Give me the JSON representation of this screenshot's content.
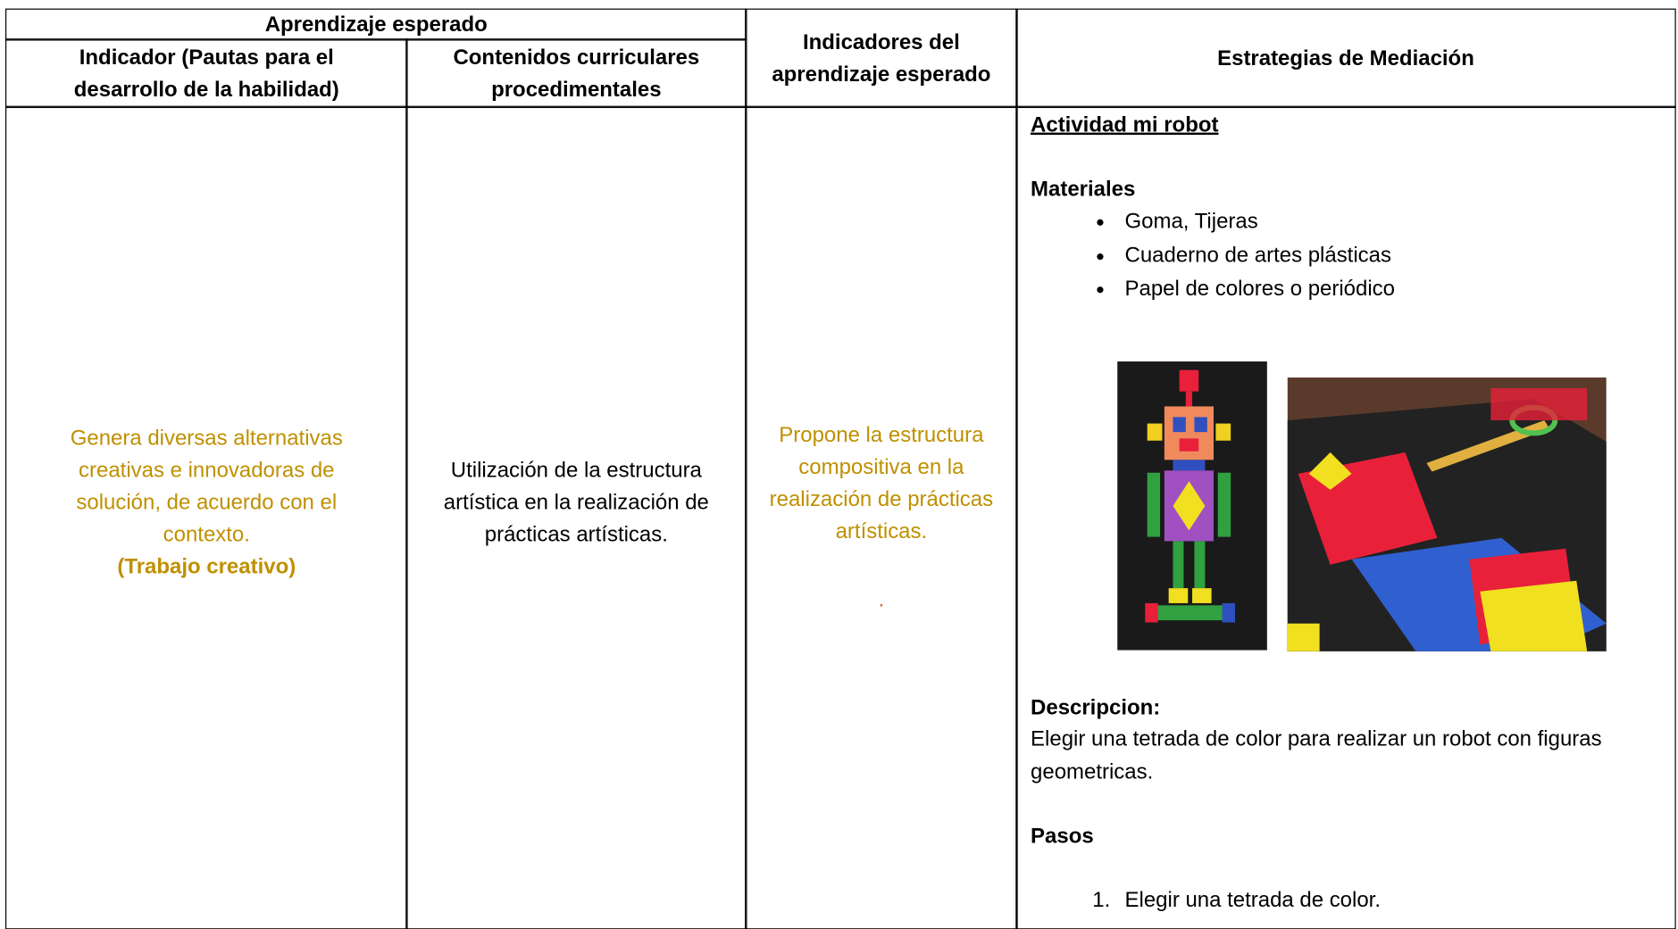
{
  "header": {
    "group_title": "Aprendizaje esperado",
    "columns": [
      "Indicador (Pautas para el desarrollo de la habilidad)",
      "Contenidos curriculares procedimentales",
      "Indicadores del aprendizaje esperado",
      "Estrategias de Mediación"
    ]
  },
  "row": {
    "indicator": "Genera diversas alternativas creativas e innovadoras de solución, de acuerdo con el contexto.",
    "indicator_tag": "(Trabajo creativo)",
    "content": "Utilización de la estructura artística en la realización de prácticas artísticas.",
    "learning_indicator": "Propone la estructura compositiva en la realización de prácticas artísticas.",
    "learning_indicator_note": ".",
    "strategies": {
      "activity_title": "Actividad mi robot",
      "materials_title": "Materiales",
      "materials": [
        "Goma, Tijeras",
        "Cuaderno de artes plásticas",
        "Papel de colores o periódico"
      ],
      "description_title": "Descripcion:",
      "description": "Elegir una tetrada de color para realizar un robot con figuras geometricas.",
      "steps_title": "Pasos",
      "steps": [
        "Elegir una tetrada de color."
      ]
    }
  }
}
